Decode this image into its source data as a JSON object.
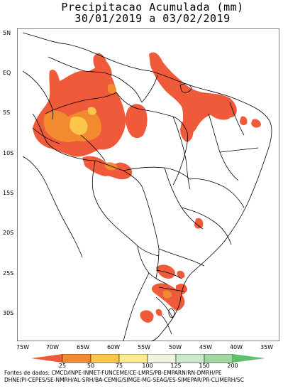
{
  "title_line1": "Precipitacao Acumulada (mm)",
  "title_line2": "30/01/2019 a 03/02/2019",
  "lat_labels": [
    "5N",
    "EQ",
    "5S",
    "10S",
    "15S",
    "20S",
    "25S",
    "30S"
  ],
  "lon_labels": [
    "75W",
    "70W",
    "65W",
    "60W",
    "55W",
    "50W",
    "45W",
    "40W",
    "35W"
  ],
  "legend": {
    "labels": [
      "25",
      "50",
      "75",
      "100",
      "125",
      "150",
      "200"
    ],
    "colors": [
      "#ee5a3a",
      "#f28a30",
      "#fbc64a",
      "#fdec8e",
      "#f2f3dc",
      "#cce9cc",
      "#9ed8a0",
      "#5fbf6a"
    ]
  },
  "source_line1": "Fontes de dados: CMCD/INPE-INMET-FUNCEME/CE-LMRS/PB-EMPARN/RN-DMRH/PE",
  "source_line2": "DHNE/PI-CEPES/SE-NMRH/AL-SRH/BA-CEMIG/SIMGE-MG-SEAG/ES-SIMEPAR/PR-CLIMERH/SC"
}
